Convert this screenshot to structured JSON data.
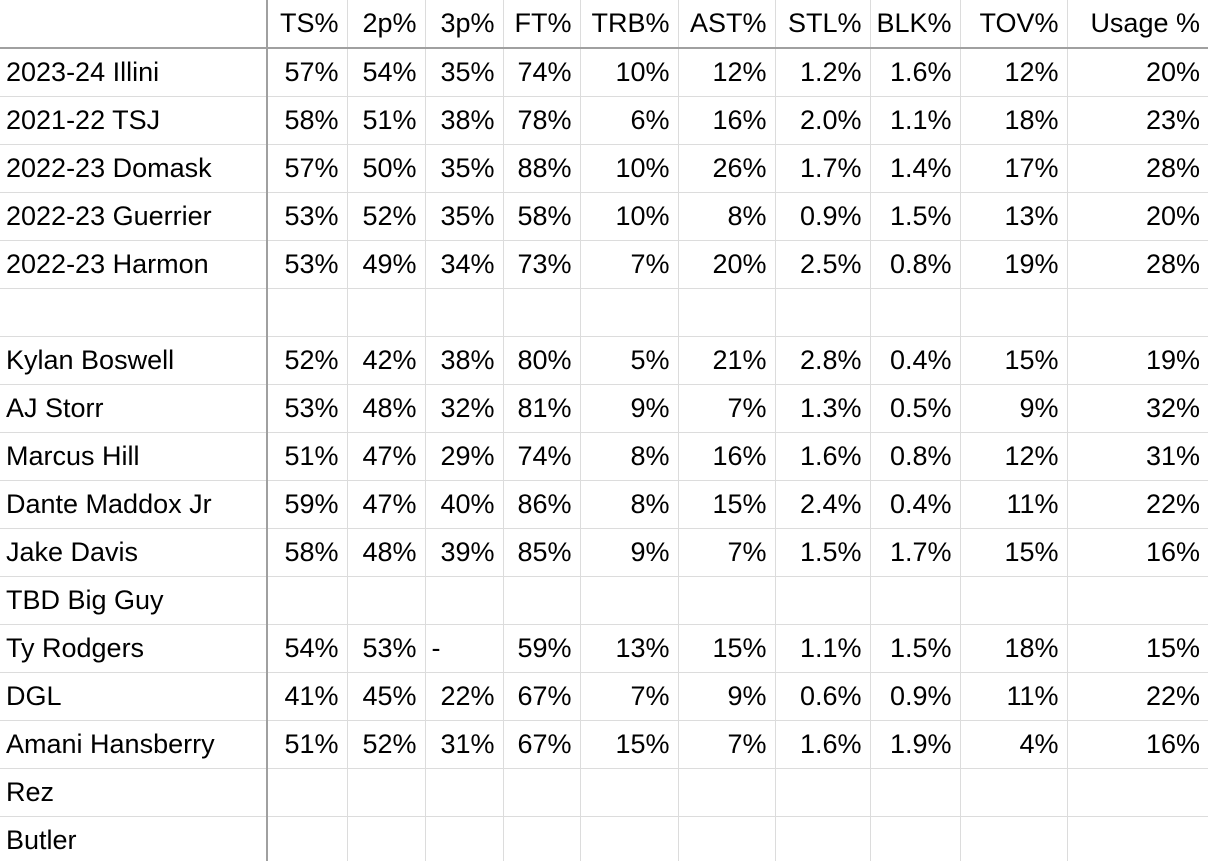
{
  "table": {
    "corner_label": "",
    "columns": [
      "TS%",
      "2p%",
      "3p%",
      "FT%",
      "TRB%",
      "AST%",
      "STL%",
      "BLK%",
      "TOV%",
      "Usage %"
    ],
    "rows": [
      {
        "name": "2023-24 Illini",
        "values": [
          "57%",
          "54%",
          "35%",
          "74%",
          "10%",
          "12%",
          "1.2%",
          "1.6%",
          "12%",
          "20%"
        ]
      },
      {
        "name": "2021-22 TSJ",
        "values": [
          "58%",
          "51%",
          "38%",
          "78%",
          "6%",
          "16%",
          "2.0%",
          "1.1%",
          "18%",
          "23%"
        ]
      },
      {
        "name": "2022-23 Domask",
        "values": [
          "57%",
          "50%",
          "35%",
          "88%",
          "10%",
          "26%",
          "1.7%",
          "1.4%",
          "17%",
          "28%"
        ]
      },
      {
        "name": "2022-23 Guerrier",
        "values": [
          "53%",
          "52%",
          "35%",
          "58%",
          "10%",
          "8%",
          "0.9%",
          "1.5%",
          "13%",
          "20%"
        ]
      },
      {
        "name": "2022-23 Harmon",
        "values": [
          "53%",
          "49%",
          "34%",
          "73%",
          "7%",
          "20%",
          "2.5%",
          "0.8%",
          "19%",
          "28%"
        ]
      },
      {
        "name": "",
        "values": [
          "",
          "",
          "",
          "",
          "",
          "",
          "",
          "",
          "",
          ""
        ]
      },
      {
        "name": "Kylan Boswell",
        "values": [
          "52%",
          "42%",
          "38%",
          "80%",
          "5%",
          "21%",
          "2.8%",
          "0.4%",
          "15%",
          "19%"
        ]
      },
      {
        "name": "AJ Storr",
        "values": [
          "53%",
          "48%",
          "32%",
          "81%",
          "9%",
          "7%",
          "1.3%",
          "0.5%",
          "9%",
          "32%"
        ]
      },
      {
        "name": "Marcus Hill",
        "values": [
          "51%",
          "47%",
          "29%",
          "74%",
          "8%",
          "16%",
          "1.6%",
          "0.8%",
          "12%",
          "31%"
        ]
      },
      {
        "name": "Dante Maddox Jr",
        "values": [
          "59%",
          "47%",
          "40%",
          "86%",
          "8%",
          "15%",
          "2.4%",
          "0.4%",
          "11%",
          "22%"
        ]
      },
      {
        "name": "Jake Davis",
        "values": [
          "58%",
          "48%",
          "39%",
          "85%",
          "9%",
          "7%",
          "1.5%",
          "1.7%",
          "15%",
          "16%"
        ]
      },
      {
        "name": "TBD Big Guy",
        "values": [
          "",
          "",
          "",
          "",
          "",
          "",
          "",
          "",
          "",
          ""
        ]
      },
      {
        "name": "Ty Rodgers",
        "values": [
          "54%",
          "53%",
          "-",
          "59%",
          "13%",
          "15%",
          "1.1%",
          "1.5%",
          "18%",
          "15%"
        ],
        "left_cols": [
          2
        ]
      },
      {
        "name": "DGL",
        "values": [
          "41%",
          "45%",
          "22%",
          "67%",
          "7%",
          "9%",
          "0.6%",
          "0.9%",
          "11%",
          "22%"
        ]
      },
      {
        "name": "Amani Hansberry",
        "values": [
          "51%",
          "52%",
          "31%",
          "67%",
          "15%",
          "7%",
          "1.6%",
          "1.9%",
          "4%",
          "16%"
        ]
      },
      {
        "name": "Rez",
        "values": [
          "",
          "",
          "",
          "",
          "",
          "",
          "",
          "",
          "",
          ""
        ]
      },
      {
        "name": "Butler",
        "values": [
          "",
          "",
          "",
          "",
          "",
          "",
          "",
          "",
          "",
          ""
        ]
      }
    ],
    "colors": {
      "background": "#ffffff",
      "text": "#000000",
      "gridline": "#dcdcdc",
      "divider": "#a0a0a0"
    }
  }
}
